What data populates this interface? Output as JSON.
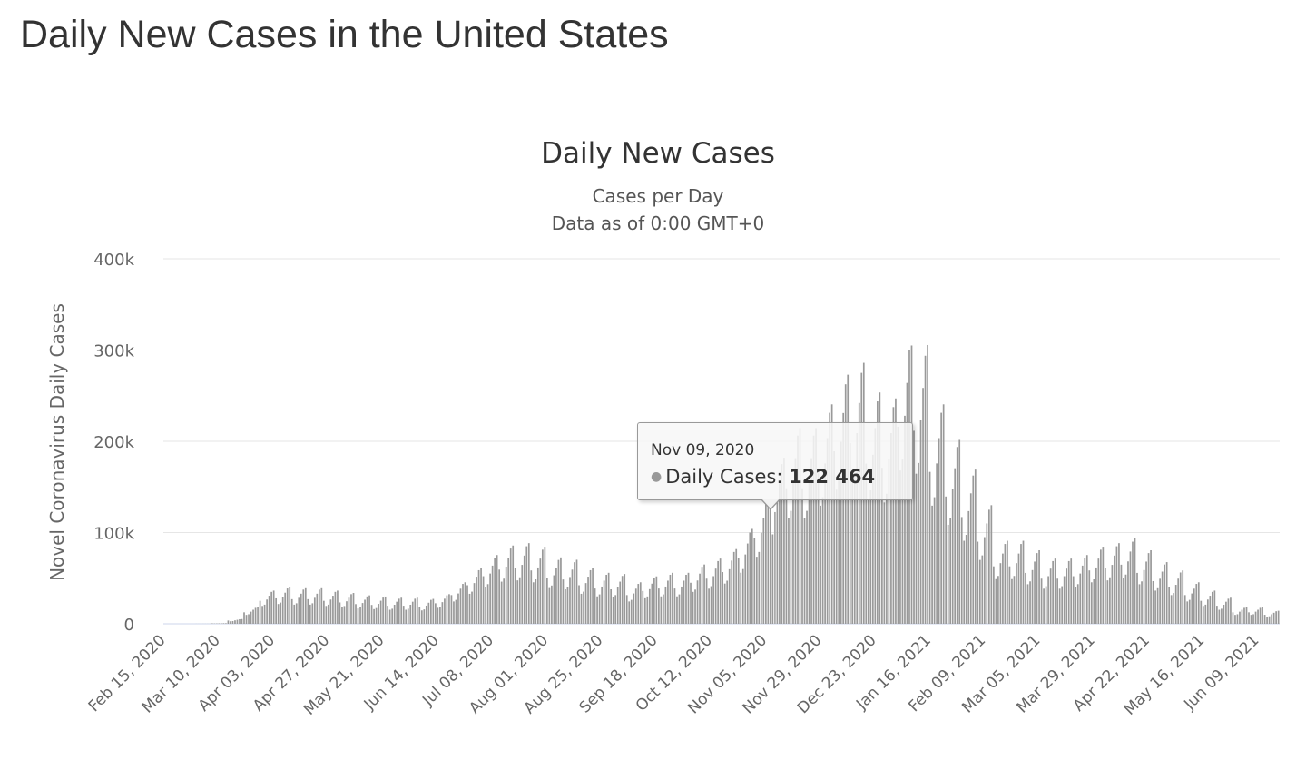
{
  "page_title": "Daily New Cases in the United States",
  "chart_data": {
    "type": "bar",
    "title": "Daily New Cases",
    "subtitle_lines": [
      "Cases per Day",
      "Data as of 0:00 GMT+0"
    ],
    "ylabel": "Novel Coronavirus Daily Cases",
    "xlabel": "",
    "ylim": [
      0,
      400000
    ],
    "y_ticks": [
      0,
      100000,
      200000,
      300000,
      400000
    ],
    "y_tick_labels": [
      "0",
      "100k",
      "200k",
      "300k",
      "400k"
    ],
    "x_start_date": "2020-02-15",
    "x_days": 490,
    "x_tick_labels": [
      "Feb 15, 2020",
      "Mar 10, 2020",
      "Apr 03, 2020",
      "Apr 27, 2020",
      "May 21, 2020",
      "Jun 14, 2020",
      "Jul 08, 2020",
      "Aug 01, 2020",
      "Aug 25, 2020",
      "Sep 18, 2020",
      "Oct 12, 2020",
      "Nov 05, 2020",
      "Nov 29, 2020",
      "Dec 23, 2020",
      "Jan 16, 2021",
      "Feb 09, 2021",
      "Mar 05, 2021",
      "Mar 29, 2021",
      "Apr 22, 2021",
      "May 16, 2021",
      "Jun 09, 2021"
    ],
    "x_tick_interval_days": 24,
    "grid": true,
    "value_unit": "cases",
    "weekly_average_thousands": [
      0,
      0,
      0.05,
      0.5,
      4,
      14,
      28,
      31,
      30,
      30,
      28,
      26,
      24,
      23,
      22,
      22,
      21,
      25,
      35,
      47,
      58,
      66,
      68,
      65,
      56,
      54,
      47,
      43,
      42,
      35,
      40,
      43,
      43,
      50,
      55,
      63,
      80,
      105,
      140,
      165,
      165,
      185,
      210,
      220,
      195,
      190,
      240,
      235,
      185,
      155,
      130,
      100,
      70,
      70,
      62,
      55,
      55,
      58,
      65,
      68,
      72,
      62,
      52,
      45,
      35,
      28,
      22,
      14,
      14,
      11
    ],
    "weekday_factors_sat_to_fri": [
      0.9,
      0.7,
      0.75,
      0.95,
      1.1,
      1.25,
      1.3
    ],
    "known_points": [
      {
        "date": "2020-11-09",
        "value": 122464
      },
      {
        "date": "2021-01-08",
        "value": 305000
      }
    ],
    "bar_color": "#999999",
    "highlight": {
      "date_label": "Nov 09, 2020",
      "series_label": "Daily Cases:",
      "value_label": "122 464"
    }
  }
}
